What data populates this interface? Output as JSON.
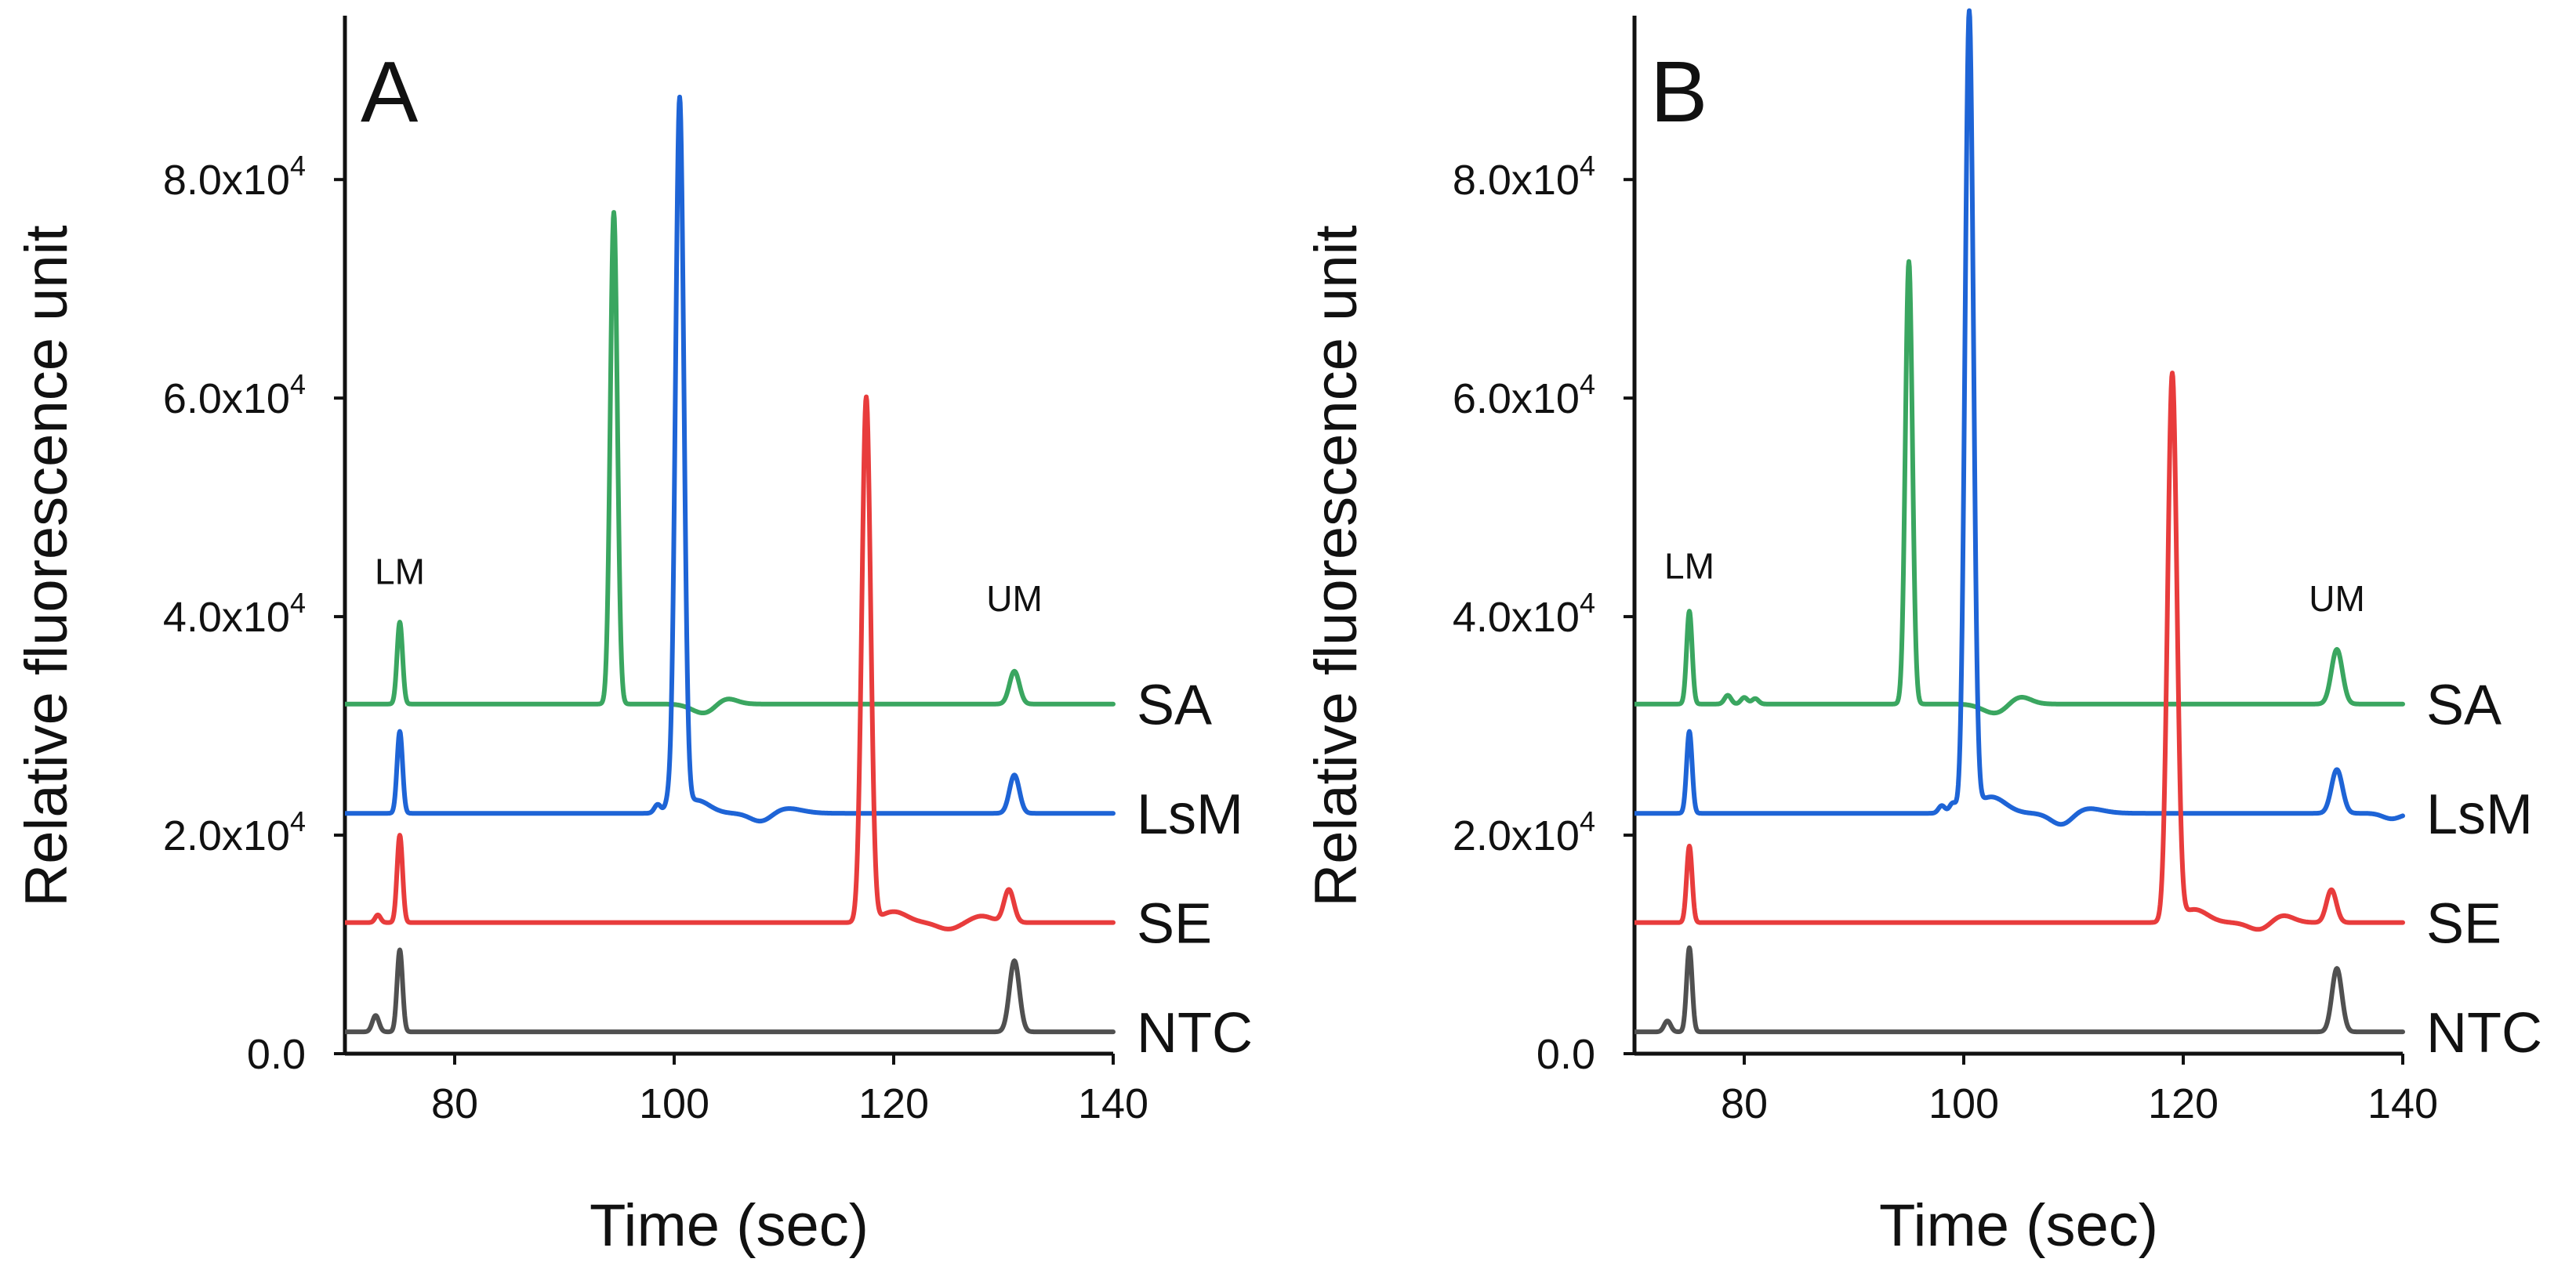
{
  "chart_data": [
    {
      "type": "line",
      "panel_label": "A",
      "xlabel": "Time (sec)",
      "ylabel": "Relative fluorescence unit",
      "xlim": [
        70,
        140
      ],
      "ylim": [
        0,
        95000
      ],
      "x_ticks": [
        {
          "value": 80,
          "label": "80"
        },
        {
          "value": 100,
          "label": "100"
        },
        {
          "value": 120,
          "label": "120"
        },
        {
          "value": 140,
          "label": "140"
        }
      ],
      "y_ticks": [
        {
          "value": 0,
          "label": "0.0"
        },
        {
          "value": 20000,
          "label": "2.0x10",
          "exp": "4"
        },
        {
          "value": 40000,
          "label": "4.0x10",
          "exp": "4"
        },
        {
          "value": 60000,
          "label": "6.0x10",
          "exp": "4"
        },
        {
          "value": 80000,
          "label": "8.0x10",
          "exp": "4"
        }
      ],
      "grid": false,
      "markers": [
        {
          "label": "LM",
          "x": 75,
          "y": 43000
        },
        {
          "label": "UM",
          "x": 131,
          "y": 40500
        }
      ],
      "series": [
        {
          "name": "SA",
          "color": "#3aa660",
          "baseline": 32000,
          "peaks": [
            [
              75,
              7500,
              0.25
            ],
            [
              94.5,
              45000,
              0.32
            ],
            [
              131,
              3000,
              0.45
            ]
          ],
          "bumps": [
            [
              103,
              -1000,
              1.2
            ],
            [
              104.5,
              800,
              1.0
            ]
          ]
        },
        {
          "name": "LsM",
          "color": "#1e64d6",
          "baseline": 22000,
          "peaks": [
            [
              75,
              7500,
              0.25
            ],
            [
              100.5,
              65000,
              0.38
            ],
            [
              131,
              3500,
              0.45
            ],
            [
              98.5,
              800,
              0.3
            ],
            [
              99.5,
              1000,
              0.3
            ]
          ],
          "bumps": [
            [
              102,
              1200,
              1.2
            ],
            [
              108,
              -900,
              1.0
            ],
            [
              110,
              500,
              1.5
            ]
          ]
        },
        {
          "name": "SE",
          "color": "#e83c3c",
          "baseline": 12000,
          "peaks": [
            [
              75,
              8000,
              0.25
            ],
            [
              73,
              700,
              0.25
            ],
            [
              117.5,
              48000,
              0.4
            ],
            [
              130.5,
              3000,
              0.45
            ]
          ],
          "bumps": [
            [
              120,
              1000,
              1.2
            ],
            [
              125,
              -600,
              1.0
            ],
            [
              128,
              600,
              1.0
            ]
          ]
        },
        {
          "name": "NTC",
          "color": "#505050",
          "baseline": 2000,
          "peaks": [
            [
              75,
              7500,
              0.25
            ],
            [
              72.8,
              1500,
              0.3
            ],
            [
              131,
              6500,
              0.45
            ]
          ],
          "bumps": []
        }
      ]
    },
    {
      "type": "line",
      "panel_label": "B",
      "xlabel": "Time (sec)",
      "ylabel": "Relative fluorescence unit",
      "xlim": [
        70,
        140
      ],
      "ylim": [
        0,
        95000
      ],
      "x_ticks": [
        {
          "value": 80,
          "label": "80"
        },
        {
          "value": 100,
          "label": "100"
        },
        {
          "value": 120,
          "label": "120"
        },
        {
          "value": 140,
          "label": "140"
        }
      ],
      "y_ticks": [
        {
          "value": 0,
          "label": "0.0"
        },
        {
          "value": 20000,
          "label": "2.0x10",
          "exp": "4"
        },
        {
          "value": 40000,
          "label": "4.0x10",
          "exp": "4"
        },
        {
          "value": 60000,
          "label": "6.0x10",
          "exp": "4"
        },
        {
          "value": 80000,
          "label": "8.0x10",
          "exp": "4"
        }
      ],
      "grid": false,
      "markers": [
        {
          "label": "LM",
          "x": 75,
          "y": 43500
        },
        {
          "label": "UM",
          "x": 134,
          "y": 40500
        }
      ],
      "series": [
        {
          "name": "SA",
          "color": "#3aa660",
          "baseline": 32000,
          "peaks": [
            [
              75,
              8500,
              0.25
            ],
            [
              95,
              40500,
              0.32
            ],
            [
              134,
              5000,
              0.5
            ],
            [
              78.5,
              800,
              0.3
            ],
            [
              80,
              600,
              0.3
            ],
            [
              81,
              500,
              0.3
            ]
          ],
          "bumps": [
            [
              103,
              -900,
              1.2
            ],
            [
              105,
              800,
              1.0
            ]
          ]
        },
        {
          "name": "LsM",
          "color": "#1e64d6",
          "baseline": 22000,
          "peaks": [
            [
              75,
              7500,
              0.25
            ],
            [
              100.5,
              73000,
              0.38
            ],
            [
              134,
              4000,
              0.5
            ],
            [
              98,
              700,
              0.3
            ],
            [
              99,
              900,
              0.3
            ]
          ],
          "bumps": [
            [
              102.5,
              1500,
              1.3
            ],
            [
              109,
              -1200,
              1.0
            ],
            [
              111,
              500,
              1.5
            ],
            [
              139,
              -500,
              0.8
            ]
          ]
        },
        {
          "name": "SE",
          "color": "#e83c3c",
          "baseline": 12000,
          "peaks": [
            [
              75,
              7000,
              0.25
            ],
            [
              119,
              50000,
              0.42
            ],
            [
              133.5,
              3000,
              0.45
            ]
          ],
          "bumps": [
            [
              121,
              1200,
              1.2
            ],
            [
              127,
              -700,
              1.0
            ],
            [
              129,
              700,
              1.0
            ]
          ]
        },
        {
          "name": "NTC",
          "color": "#505050",
          "baseline": 2000,
          "peaks": [
            [
              75,
              7700,
              0.25
            ],
            [
              73,
              1000,
              0.3
            ],
            [
              134,
              5800,
              0.45
            ]
          ],
          "bumps": []
        }
      ]
    }
  ]
}
